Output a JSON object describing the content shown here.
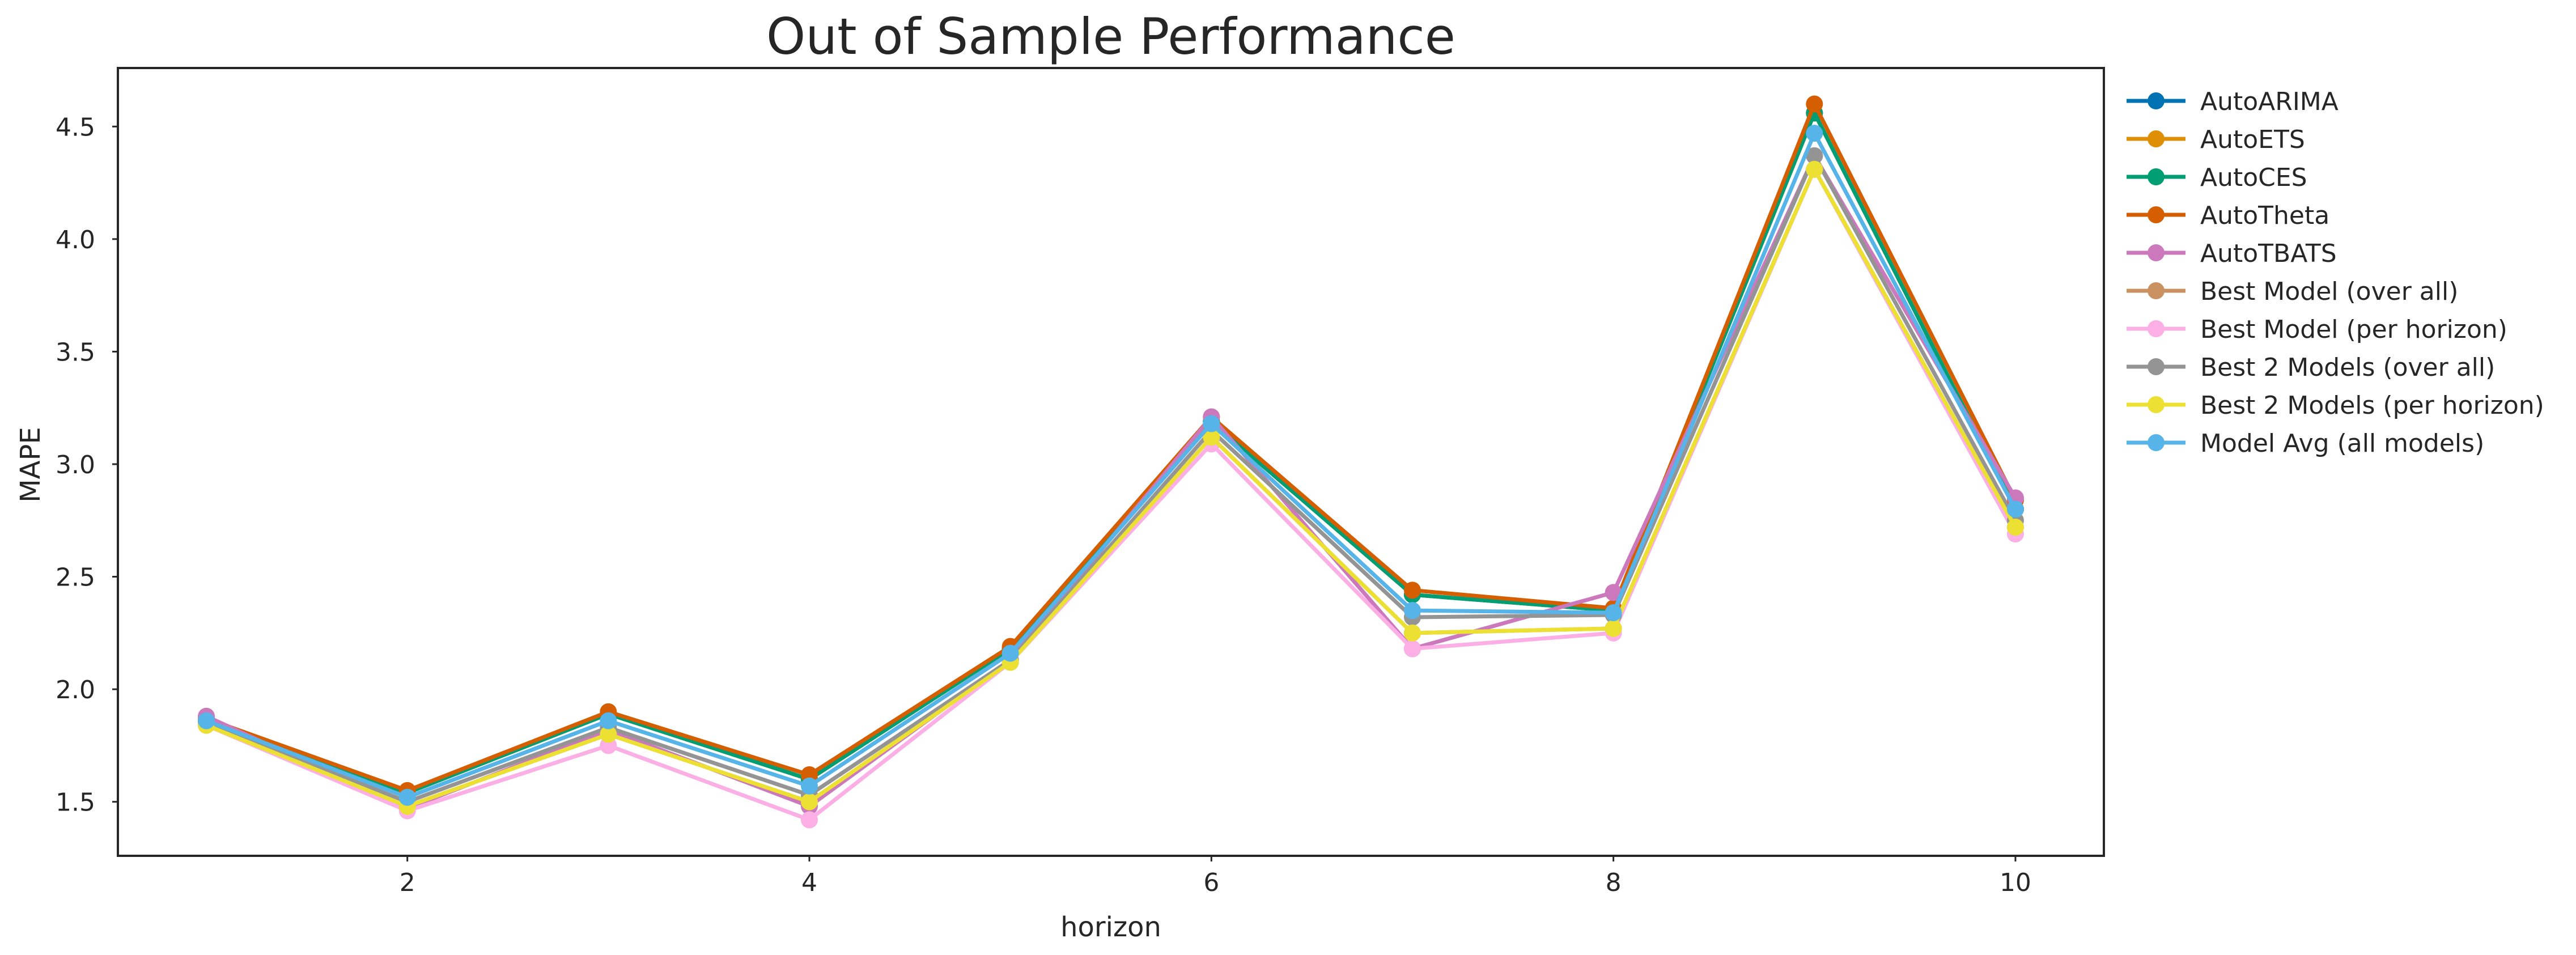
{
  "chart_data": {
    "type": "line",
    "title": "Out of Sample Performance",
    "xlabel": "horizon",
    "ylabel": "MAPE",
    "x": [
      1,
      2,
      3,
      4,
      5,
      6,
      7,
      8,
      9,
      10
    ],
    "xticks": [
      2,
      4,
      6,
      8,
      10
    ],
    "yticks": [
      1.5,
      2.0,
      2.5,
      3.0,
      3.5,
      4.0,
      4.5
    ],
    "xlim": [
      0.56,
      10.44
    ],
    "ylim": [
      1.26,
      4.76
    ],
    "grid": false,
    "legend_position": "outside-right",
    "markers": true,
    "series": [
      {
        "name": "AutoARIMA",
        "color": "#0173b2",
        "values": [
          1.86,
          1.54,
          1.89,
          1.6,
          2.18,
          3.19,
          2.42,
          2.35,
          4.56,
          2.8
        ]
      },
      {
        "name": "AutoETS",
        "color": "#de8f05",
        "values": [
          1.86,
          1.54,
          1.89,
          1.6,
          2.18,
          3.19,
          2.42,
          2.35,
          4.56,
          2.8
        ]
      },
      {
        "name": "AutoCES",
        "color": "#029e73",
        "values": [
          1.86,
          1.54,
          1.89,
          1.6,
          2.18,
          3.19,
          2.42,
          2.35,
          4.56,
          2.8
        ]
      },
      {
        "name": "AutoTheta",
        "color": "#d55e00",
        "values": [
          1.87,
          1.55,
          1.9,
          1.62,
          2.19,
          3.21,
          2.44,
          2.36,
          4.6,
          2.84
        ]
      },
      {
        "name": "AutoTBATS",
        "color": "#cc78bc",
        "values": [
          1.88,
          1.47,
          1.82,
          1.48,
          2.13,
          3.21,
          2.18,
          2.43,
          4.37,
          2.85
        ]
      },
      {
        "name": "Best Model (over all)",
        "color": "#ca9161",
        "values": [
          1.84,
          1.48,
          1.8,
          1.5,
          2.12,
          3.12,
          2.25,
          2.27,
          4.31,
          2.72
        ]
      },
      {
        "name": "Best Model (per horizon)",
        "color": "#fbafe4",
        "values": [
          1.84,
          1.46,
          1.75,
          1.42,
          2.12,
          3.09,
          2.18,
          2.25,
          4.31,
          2.69
        ]
      },
      {
        "name": "Best 2 Models (over all)",
        "color": "#949494",
        "values": [
          1.85,
          1.5,
          1.83,
          1.53,
          2.13,
          3.15,
          2.32,
          2.33,
          4.37,
          2.75
        ]
      },
      {
        "name": "Best 2 Models (per horizon)",
        "color": "#ece133",
        "values": [
          1.84,
          1.48,
          1.8,
          1.5,
          2.12,
          3.12,
          2.25,
          2.27,
          4.31,
          2.72
        ]
      },
      {
        "name": "Model Avg (all models)",
        "color": "#56b4e9",
        "values": [
          1.86,
          1.52,
          1.86,
          1.57,
          2.16,
          3.18,
          2.35,
          2.34,
          4.47,
          2.8
        ]
      }
    ]
  }
}
